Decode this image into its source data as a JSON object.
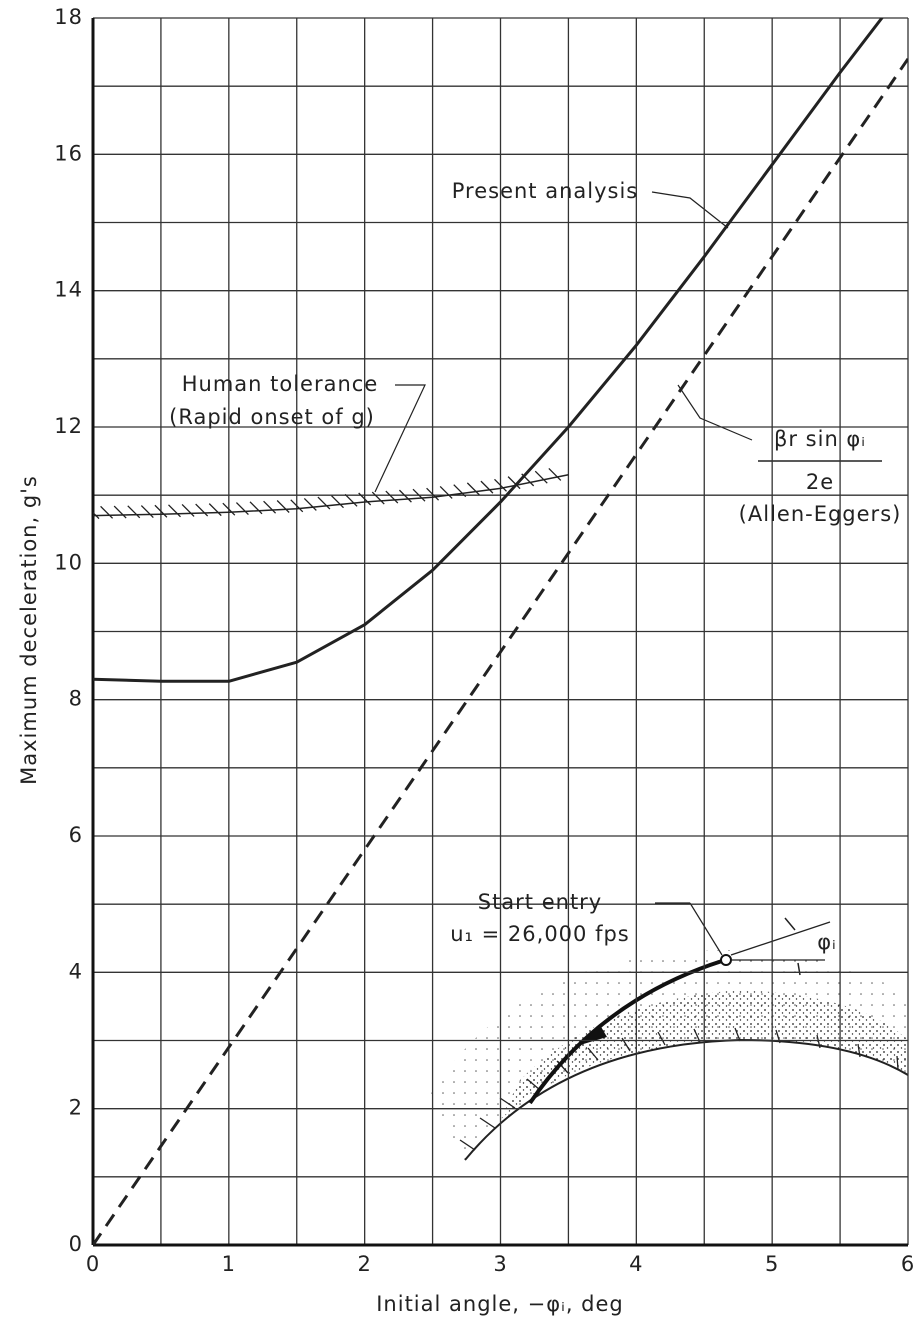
{
  "chart_data": {
    "type": "line",
    "x_label": "Initial angle, −φᵢ, deg",
    "y_label": "Maximum deceleration, g's",
    "x": [
      0,
      0.5,
      1,
      1.5,
      2,
      2.5,
      3,
      3.5,
      4,
      4.5,
      5,
      5.5,
      6
    ],
    "series": [
      {
        "name": "Present analysis",
        "color": "#222222",
        "values": [
          8.3,
          8.27,
          8.27,
          8.55,
          9.1,
          9.9,
          10.9,
          12.0,
          13.2,
          14.5,
          15.85,
          17.2,
          18.5
        ]
      },
      {
        "color": "#222222",
        "dashed": true,
        "values": [
          0,
          1.45,
          2.9,
          4.35,
          5.8,
          7.25,
          8.7,
          10.15,
          11.6,
          13.05,
          14.5,
          15.95,
          17.4
        ]
      },
      {
        "name": "Human tolerance",
        "color": "#222222",
        "hatched": true,
        "values": [
          10.7,
          10.72,
          10.75,
          10.8,
          10.9,
          10.97,
          11.1,
          11.3,
          null,
          null,
          null,
          null,
          null
        ]
      }
    ],
    "annotations": [
      "(Rapid onset of g)",
      "βr sin φᵢ",
      "2e",
      "(Allen-Eggers)",
      "Start entry",
      "u₁ = 26,000 fps",
      "φᵢ"
    ],
    "xlim": [
      0,
      6
    ],
    "ylim": [
      0,
      18
    ],
    "xticks": [
      0,
      1,
      2,
      3,
      4,
      5,
      6
    ],
    "yticks": [
      0,
      2,
      4,
      6,
      8,
      10,
      12,
      14,
      16,
      18
    ],
    "grid": true
  }
}
